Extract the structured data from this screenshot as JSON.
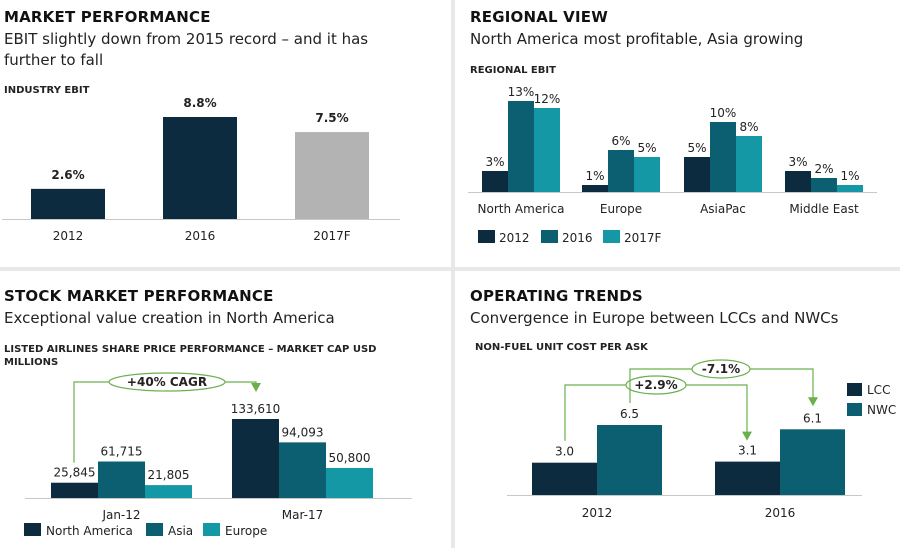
{
  "colors": {
    "c2012": "#0d2b3e",
    "c2016": "#0b5f70",
    "c2017": "#1598a6",
    "gray": "#b3b3b3",
    "green": "#6ab04c"
  },
  "p1": {
    "title": "MARKET PERFORMANCE",
    "subtitle": "EBIT slightly down from 2015 record – and it has further to fall",
    "label": "INDUSTRY EBIT"
  },
  "p2": {
    "title": "REGIONAL VIEW",
    "subtitle": "North America most profitable, Asia growing",
    "label": "REGIONAL EBIT"
  },
  "p3": {
    "title": "STOCK MARKET PERFORMANCE",
    "subtitle": "Exceptional value creation in North America",
    "label": "LISTED AIRLINES SHARE PRICE PERFORMANCE – MARKET CAP USD MILLIONS"
  },
  "p4": {
    "title": "OPERATING TRENDS",
    "subtitle": "Convergence in Europe between LCCs and NWCs",
    "label": "NON-FUEL UNIT COST PER ASK"
  },
  "chart_data": [
    {
      "id": "industry-ebit",
      "type": "bar",
      "title": "INDUSTRY EBIT",
      "categories": [
        "2012",
        "2016",
        "2017F"
      ],
      "values": [
        2.6,
        8.8,
        7.5
      ],
      "labels": [
        "2.6%",
        "8.8%",
        "7.5%"
      ],
      "colors": [
        "#0d2b3e",
        "#0d2b3e",
        "#b3b3b3"
      ],
      "ylim": [
        0,
        8.8
      ]
    },
    {
      "id": "regional-ebit",
      "type": "bar",
      "title": "REGIONAL EBIT",
      "categories": [
        "North America",
        "Europe",
        "AsiaPac",
        "Middle East"
      ],
      "series": [
        {
          "name": "2012",
          "values": [
            3,
            1,
            5,
            3
          ],
          "labels": [
            "3%",
            "1%",
            "5%",
            "3%"
          ],
          "color": "#0d2b3e"
        },
        {
          "name": "2016",
          "values": [
            13,
            6,
            10,
            2
          ],
          "labels": [
            "13%",
            "6%",
            "10%",
            "2%"
          ],
          "color": "#0b5f70"
        },
        {
          "name": "2017F",
          "values": [
            12,
            5,
            8,
            1
          ],
          "labels": [
            "12%",
            "5%",
            "8%",
            "1%"
          ],
          "color": "#1598a6"
        }
      ],
      "ylim": [
        0,
        13
      ],
      "legend": "bottom"
    },
    {
      "id": "share-price",
      "type": "bar",
      "title": "LISTED AIRLINES SHARE PRICE PERFORMANCE – MARKET CAP USD MILLIONS",
      "categories": [
        "Jan-12",
        "Mar-17"
      ],
      "series": [
        {
          "name": "North America",
          "values": [
            25845,
            133610
          ],
          "labels": [
            "25,845",
            "133,610"
          ],
          "color": "#0d2b3e"
        },
        {
          "name": "Asia",
          "values": [
            61715,
            94093
          ],
          "labels": [
            "61,715",
            "94,093"
          ],
          "color": "#0b5f70"
        },
        {
          "name": "Europe",
          "values": [
            21805,
            50800
          ],
          "labels": [
            "21,805",
            "50,800"
          ],
          "color": "#1598a6"
        }
      ],
      "annotations": [
        {
          "text": "+40% CAGR"
        }
      ],
      "ylim": [
        0,
        133610
      ],
      "legend": "bottom"
    },
    {
      "id": "unit-cost",
      "type": "bar",
      "title": "NON-FUEL UNIT COST PER ASK",
      "categories": [
        "2012",
        "2016"
      ],
      "series": [
        {
          "name": "LCC",
          "values": [
            3.0,
            3.1
          ],
          "labels": [
            "3.0",
            "3.1"
          ],
          "color": "#0d2b3e"
        },
        {
          "name": "NWC",
          "values": [
            6.5,
            6.1
          ],
          "labels": [
            "6.5",
            "6.1"
          ],
          "color": "#0b5f70"
        }
      ],
      "annotations": [
        {
          "text": "+2.9%"
        },
        {
          "text": "-7.1%"
        }
      ],
      "ylim": [
        0,
        6.5
      ],
      "legend": "right"
    }
  ]
}
